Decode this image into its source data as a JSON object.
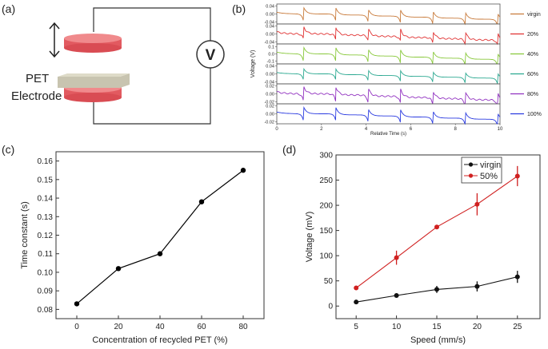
{
  "panel_labels": {
    "a": "(a)",
    "b": "(b)",
    "c": "(c)",
    "d": "(d)"
  },
  "diagram": {
    "pet_label": "PET",
    "electrode_label": "Electrode",
    "meter_label": "V",
    "electrode_color": "#e8666a",
    "pet_color": "#c8c4b0"
  },
  "chart_data": [
    {
      "panel": "b",
      "type": "line",
      "xlabel": "Relative Time (s)",
      "ylabel": "Voltage (V)",
      "xlim": [
        0,
        10
      ],
      "xticks": [
        0,
        2,
        4,
        6,
        8,
        10
      ],
      "pulse_times": [
        1.2,
        2.65,
        4.1,
        5.55,
        7.0,
        8.45,
        9.9
      ],
      "series": [
        {
          "name": "virgin",
          "color": "#c87a3a",
          "ylim": [
            -0.05,
            0.05
          ],
          "yticks": [
            "0.04",
            "0.00",
            "-0.04"
          ],
          "tickvals": [
            0.04,
            0,
            -0.04
          ],
          "peak": 0.035,
          "dip": -0.04
        },
        {
          "name": "20%",
          "color": "#e03030",
          "ylim": [
            -0.05,
            0.05
          ],
          "yticks": [
            "0.04",
            "0.00",
            "-0.04"
          ],
          "tickvals": [
            0.04,
            0,
            -0.04
          ],
          "peak": 0.04,
          "dip": -0.03
        },
        {
          "name": "40%",
          "color": "#88c83a",
          "ylim": [
            -0.14,
            0.14
          ],
          "yticks": [
            "0.1",
            "0.0",
            "-0.1"
          ],
          "tickvals": [
            0.1,
            0,
            -0.1
          ],
          "peak": 0.1,
          "dip": -0.12
        },
        {
          "name": "60%",
          "color": "#2aa890",
          "ylim": [
            -0.05,
            0.05
          ],
          "yticks": [
            "0.04",
            "0.00",
            "-0.04"
          ],
          "tickvals": [
            0.04,
            0,
            -0.04
          ],
          "peak": 0.028,
          "dip": -0.035
        },
        {
          "name": "80%",
          "color": "#9030c0",
          "ylim": [
            -0.025,
            0.025
          ],
          "yticks": [
            "0.02",
            "0.00",
            "-0.02"
          ],
          "tickvals": [
            0.02,
            0,
            -0.02
          ],
          "peak": 0.02,
          "dip": -0.022
        },
        {
          "name": "100%",
          "color": "#2a3ae0",
          "ylim": [
            -0.025,
            0.025
          ],
          "yticks": [
            "0.02",
            "0.00",
            "-0.02"
          ],
          "tickvals": [
            0.02,
            0,
            -0.02
          ],
          "peak": 0.018,
          "dip": -0.02
        }
      ]
    },
    {
      "panel": "c",
      "type": "line",
      "xlabel": "Concentration of recycled PET (%)",
      "ylabel": "Time constant (s)",
      "xlim": [
        -10,
        90
      ],
      "ylim": [
        0.075,
        0.165
      ],
      "xticks": [
        0,
        20,
        40,
        60,
        80
      ],
      "yticks": [
        0.08,
        0.09,
        0.1,
        0.11,
        0.12,
        0.13,
        0.14,
        0.15,
        0.16
      ],
      "x": [
        0,
        20,
        40,
        60,
        80
      ],
      "y": [
        0.083,
        0.102,
        0.11,
        0.138,
        0.155
      ],
      "color": "#000000"
    },
    {
      "panel": "d",
      "type": "line",
      "xlabel": "Speed (mm/s)",
      "ylabel": "Voltage (mV)",
      "xlim": [
        2.5,
        27.8
      ],
      "ylim": [
        -25,
        300
      ],
      "xticks": [
        5,
        10,
        15,
        20,
        25
      ],
      "yticks": [
        0,
        50,
        100,
        150,
        200,
        250,
        300
      ],
      "legend": "top-right",
      "x": [
        5,
        10,
        15,
        20,
        25
      ],
      "series": [
        {
          "name": "virgin",
          "color": "#111111",
          "y": [
            8,
            21,
            33,
            39,
            58
          ],
          "err": [
            3,
            4,
            7,
            10,
            12
          ]
        },
        {
          "name": "50%",
          "color": "#d02020",
          "y": [
            36,
            96,
            157,
            202,
            258
          ],
          "err": [
            3,
            14,
            3,
            22,
            20
          ]
        }
      ]
    }
  ]
}
